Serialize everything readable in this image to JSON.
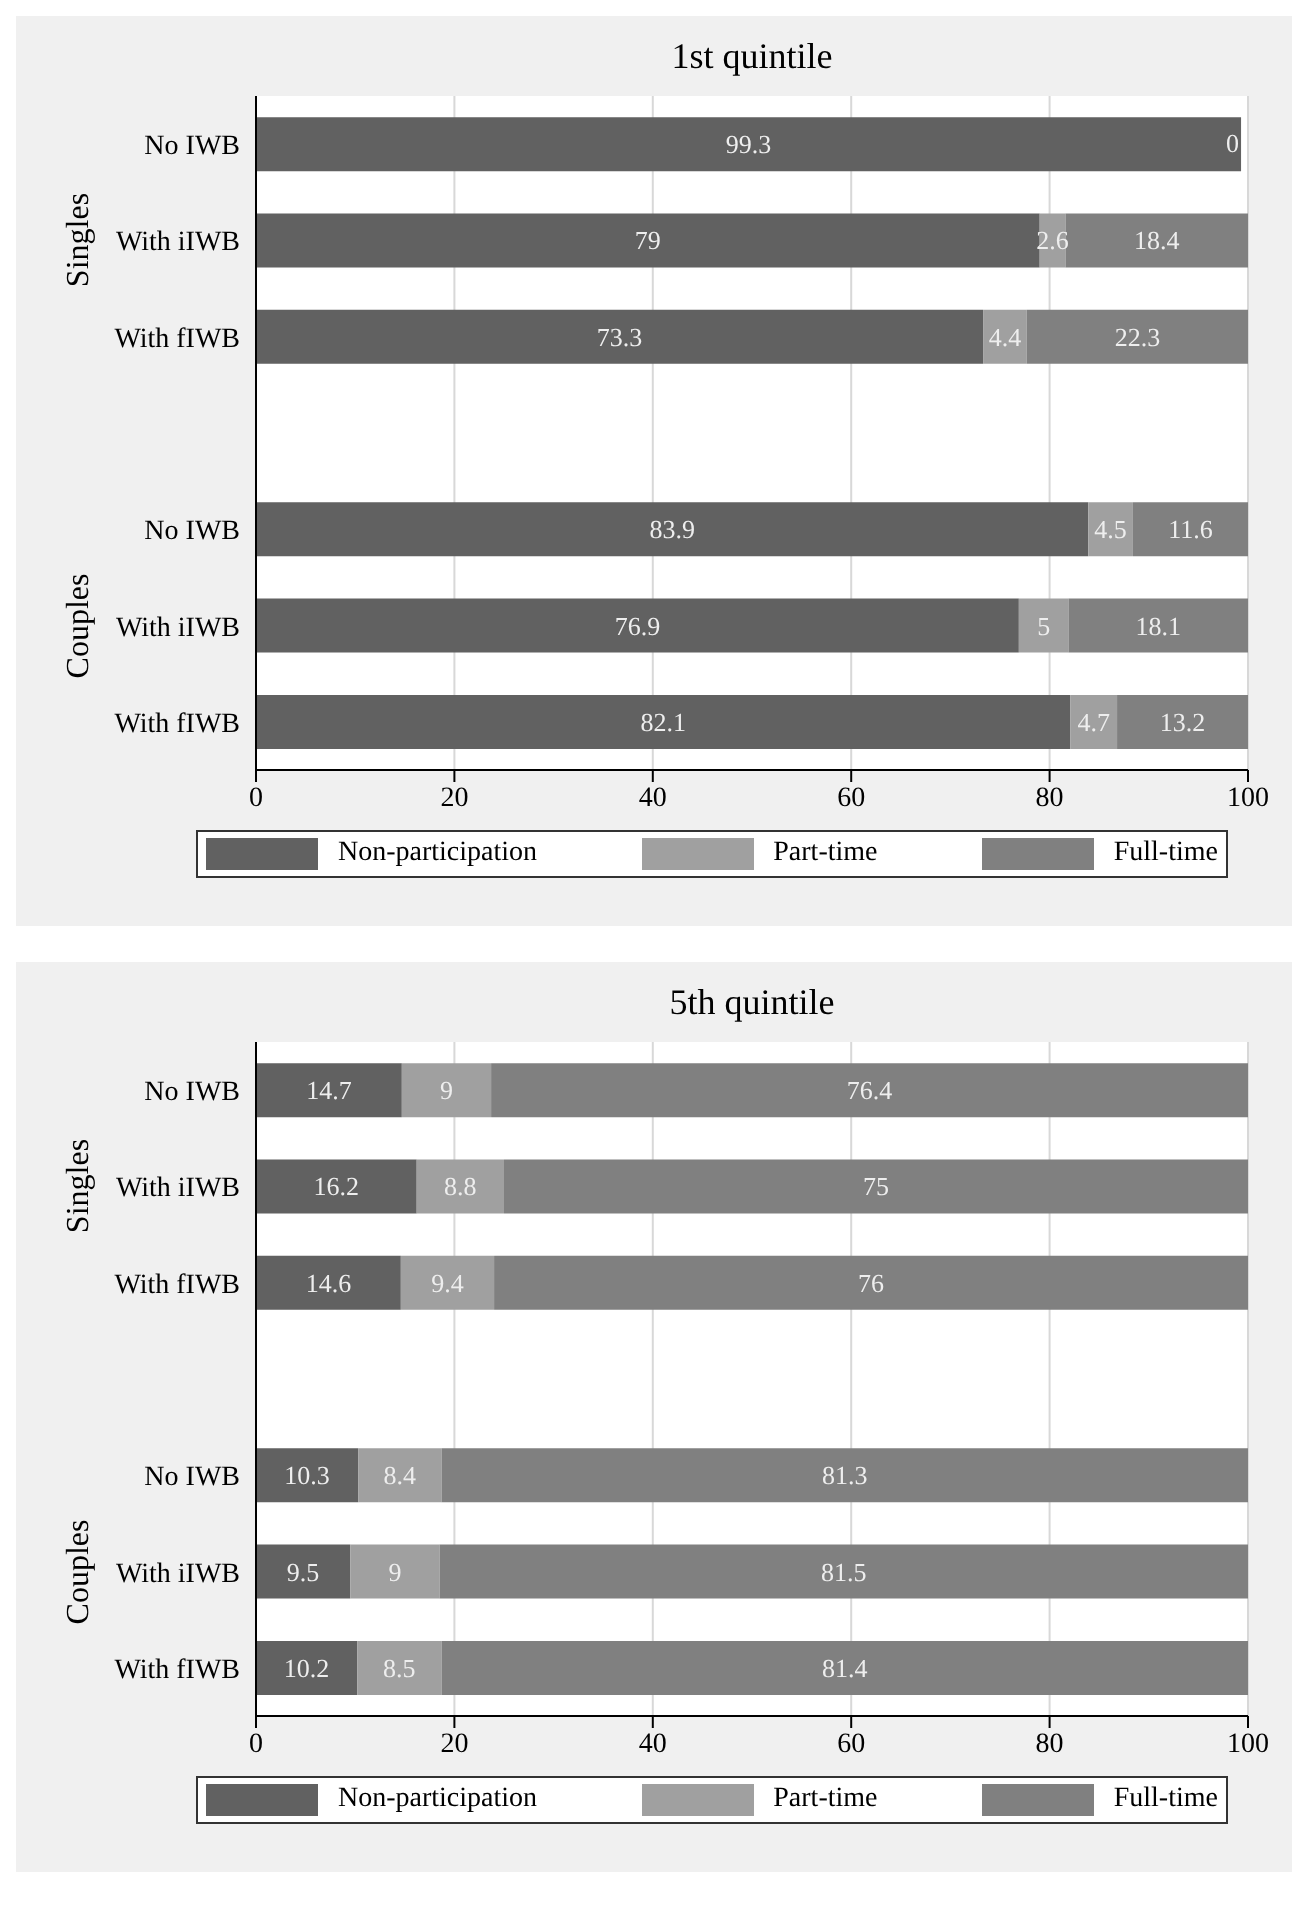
{
  "chart_data": [
    {
      "type": "bar",
      "orientation": "horizontal",
      "stacked": true,
      "title": "1st quintile",
      "categories": [
        "No IWB",
        "With iIWB",
        "With fIWB",
        null,
        "No IWB",
        "With iIWB",
        "With fIWB"
      ],
      "series": [
        {
          "name": "Non-participation",
          "color": "#616161",
          "values": [
            99.3,
            79,
            73.3,
            null,
            83.9,
            76.9,
            82.1
          ]
        },
        {
          "name": "Part-time",
          "color": "#a0a0a0",
          "values": [
            0,
            2.6,
            4.4,
            null,
            4.5,
            5,
            4.7
          ]
        },
        {
          "name": "Full-time",
          "color": "#808080",
          "values": [
            null,
            18.4,
            22.3,
            null,
            11.6,
            18.1,
            13.2
          ]
        }
      ],
      "xlim": [
        0,
        100
      ],
      "xticks": [
        0,
        20,
        40,
        60,
        80,
        100
      ],
      "grid": "x",
      "legend": "bottom",
      "data_labels": true,
      "annotations": [
        "Singles",
        "Couples"
      ]
    },
    {
      "type": "bar",
      "orientation": "horizontal",
      "stacked": true,
      "title": "5th quintile",
      "categories": [
        "No IWB",
        "With iIWB",
        "With fIWB",
        null,
        "No IWB",
        "With iIWB",
        "With fIWB"
      ],
      "series": [
        {
          "name": "Non-participation",
          "color": "#616161",
          "values": [
            14.7,
            16.2,
            14.6,
            null,
            10.3,
            9.5,
            10.2
          ]
        },
        {
          "name": "Part-time",
          "color": "#a0a0a0",
          "values": [
            9,
            8.8,
            9.4,
            null,
            8.4,
            9,
            8.5
          ]
        },
        {
          "name": "Full-time",
          "color": "#808080",
          "values": [
            76.4,
            75,
            76,
            null,
            81.3,
            81.5,
            81.4
          ]
        }
      ],
      "xlim": [
        0,
        100
      ],
      "xticks": [
        0,
        20,
        40,
        60,
        80,
        100
      ],
      "grid": "x",
      "legend": "bottom",
      "data_labels": true,
      "annotations": [
        "Singles",
        "Couples"
      ]
    }
  ]
}
